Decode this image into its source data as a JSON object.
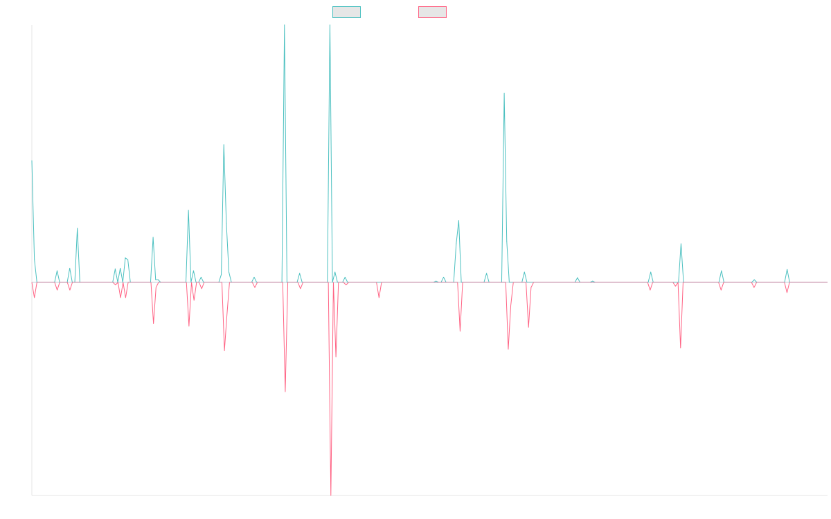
{
  "chart_data": {
    "type": "line",
    "title": "",
    "xlabel": "",
    "ylabel": "",
    "grid": false,
    "legend_position": "top-center",
    "ylim": [
      -1.0,
      1.0
    ],
    "series": [
      {
        "name": "",
        "color": "#4bc0c0",
        "values": [
          0.473,
          0.09,
          0,
          0,
          0,
          0,
          0,
          0,
          0,
          0,
          0.045,
          0,
          0,
          0,
          0,
          0.055,
          0,
          0,
          0.21,
          0,
          0,
          0,
          0,
          0,
          0,
          0,
          0,
          0,
          0,
          0,
          0,
          0,
          0,
          0.052,
          0,
          0.055,
          0,
          0.095,
          0.088,
          0,
          0,
          0,
          0,
          0,
          0,
          0,
          0,
          0,
          0.175,
          0.01,
          0.01,
          0,
          0,
          0,
          0,
          0,
          0,
          0,
          0,
          0,
          0,
          0,
          0.28,
          0,
          0.045,
          0,
          0,
          0.02,
          0,
          0,
          0,
          0,
          0,
          0,
          0,
          0.03,
          0.535,
          0.23,
          0.04,
          0,
          0,
          0,
          0,
          0,
          0,
          0,
          0,
          0,
          0.02,
          0,
          0,
          0,
          0,
          0,
          0,
          0,
          0,
          0,
          0,
          0,
          1.09,
          0,
          0,
          0,
          0,
          0,
          0.035,
          0,
          0,
          0,
          0,
          0,
          0,
          0,
          0,
          0,
          0,
          0,
          1.09,
          0,
          0.04,
          0,
          0,
          0,
          0.02,
          0,
          0,
          0,
          0,
          0,
          0,
          0,
          0,
          0,
          0,
          0,
          0,
          0,
          0,
          0,
          0,
          0,
          0,
          0,
          0,
          0,
          0,
          0,
          0,
          0,
          0,
          0,
          0,
          0,
          0,
          0,
          0,
          0,
          0,
          0,
          0.005,
          0,
          0,
          0.02,
          0,
          0,
          0,
          0,
          0.15,
          0.24,
          0,
          0,
          0,
          0,
          0,
          0,
          0,
          0,
          0,
          0,
          0.035,
          0,
          0,
          0,
          0,
          0,
          0,
          0.735,
          0.16,
          0,
          0,
          0,
          0,
          0,
          0,
          0.04,
          0,
          0,
          0,
          0,
          0,
          0,
          0,
          0,
          0,
          0,
          0,
          0,
          0,
          0,
          0,
          0,
          0,
          0,
          0,
          0,
          0.018,
          0,
          0,
          0,
          0,
          0,
          0.005,
          0,
          0,
          0,
          0,
          0,
          0,
          0,
          0,
          0,
          0,
          0,
          0,
          0,
          0,
          0,
          0,
          0,
          0,
          0,
          0,
          0,
          0,
          0.04,
          0,
          0,
          0,
          0,
          0,
          0,
          0,
          0,
          0,
          0,
          0,
          0.15,
          0,
          0,
          0,
          0,
          0,
          0,
          0,
          0,
          0,
          0,
          0,
          0,
          0,
          0,
          0,
          0.045,
          0,
          0,
          0,
          0,
          0,
          0,
          0,
          0,
          0,
          0,
          0,
          0,
          0.01,
          0,
          0,
          0,
          0,
          0,
          0,
          0,
          0,
          0,
          0,
          0,
          0,
          0.05,
          0,
          0,
          0,
          0,
          0,
          0,
          0,
          0,
          0,
          0,
          0,
          0,
          0,
          0,
          0,
          0
        ]
      },
      {
        "name": "",
        "color": "#ff6384",
        "values": [
          0,
          -0.06,
          0,
          0,
          0,
          0,
          0,
          0,
          0,
          0,
          -0.03,
          0,
          0,
          0,
          0,
          -0.03,
          0,
          0,
          0,
          0,
          0,
          0,
          0,
          0,
          0,
          0,
          0,
          0,
          0,
          0,
          0,
          0,
          0,
          -0.01,
          0,
          -0.06,
          0,
          -0.06,
          0,
          0,
          0,
          0,
          0,
          0,
          0,
          0,
          0,
          0,
          -0.16,
          -0.02,
          0,
          0,
          0,
          0,
          0,
          0,
          0,
          0,
          0,
          0,
          0,
          0,
          -0.17,
          0,
          -0.07,
          0,
          0,
          -0.025,
          0,
          0,
          0,
          0,
          0,
          0,
          0,
          0,
          -0.265,
          -0.125,
          0,
          0,
          0,
          0,
          0,
          0,
          0,
          0,
          0,
          0,
          -0.02,
          0,
          0,
          0,
          0,
          0,
          0,
          0,
          0,
          0,
          0,
          0,
          -0.425,
          0,
          0,
          0,
          0,
          0,
          -0.025,
          0,
          0,
          0,
          0,
          0,
          0,
          0,
          0,
          0,
          0,
          0,
          -0.91,
          0,
          -0.29,
          0,
          0,
          0,
          -0.01,
          0,
          0,
          0,
          0,
          0,
          0,
          0,
          0,
          0,
          0,
          0,
          0,
          -0.06,
          0,
          0,
          0,
          0,
          0,
          0,
          0,
          0,
          0,
          0,
          0,
          0,
          0,
          0,
          0,
          0,
          0,
          0,
          0,
          0,
          0,
          0,
          0,
          0,
          0,
          0,
          0,
          0,
          0,
          0,
          0,
          -0.19,
          0,
          0,
          0,
          0,
          0,
          0,
          0,
          0,
          0,
          0,
          0,
          0,
          0,
          0,
          0,
          0,
          0,
          0,
          -0.26,
          -0.09,
          0,
          0,
          0,
          0,
          0,
          0,
          -0.175,
          -0.02,
          0,
          0,
          0,
          0,
          0,
          0,
          0,
          0,
          0,
          0,
          0,
          0,
          0,
          0,
          0,
          0,
          0,
          0,
          0,
          0,
          0,
          0,
          0,
          0,
          0,
          0,
          0,
          0,
          0,
          0,
          0,
          0,
          0,
          0,
          0,
          0,
          0,
          0,
          0,
          0,
          0,
          0,
          0,
          0,
          0,
          0,
          -0.03,
          0,
          0,
          0,
          0,
          0,
          0,
          0,
          0,
          0,
          -0.015,
          0,
          -0.255,
          0,
          0,
          0,
          0,
          0,
          0,
          0,
          0,
          0,
          0,
          0,
          0,
          0,
          0,
          0,
          -0.03,
          0,
          0,
          0,
          0,
          0,
          0,
          0,
          0,
          0,
          0,
          0,
          0,
          -0.02,
          0,
          0,
          0,
          0,
          0,
          0,
          0,
          0,
          0,
          0,
          0,
          0,
          -0.04,
          0,
          0,
          0,
          0,
          0,
          0,
          0,
          0,
          0,
          0,
          0,
          0,
          0,
          0,
          0,
          0
        ]
      }
    ]
  }
}
